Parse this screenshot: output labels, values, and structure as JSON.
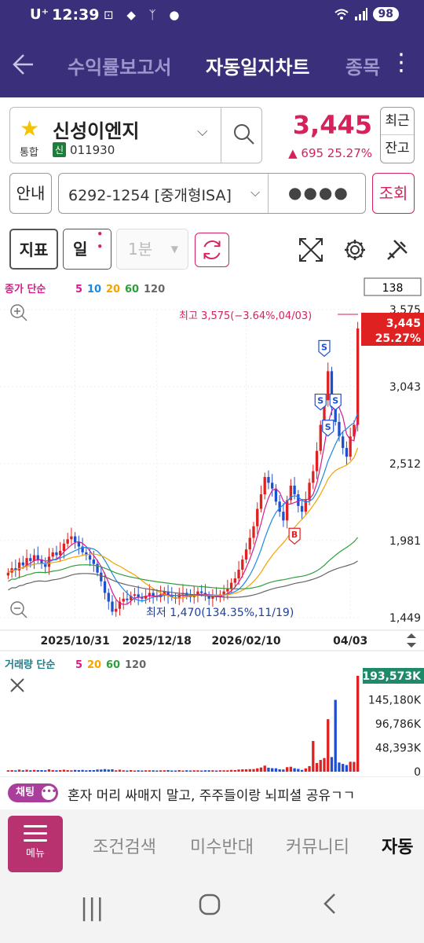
{
  "status": {
    "carrier": "U⁺",
    "time": "12:39",
    "icons": "⊡ ◆ ᛉ ●",
    "battery": "98"
  },
  "nav": {
    "tabs": [
      "수익률보고서",
      "자동일지차트",
      "종목"
    ],
    "active_tab": "자동일지차트"
  },
  "stock": {
    "name": "신성이엔지",
    "market": "통합",
    "badge": "신",
    "code": "011930",
    "price": "3,445",
    "change": "▲ 695   25.27%",
    "recent": "최근",
    "balance": "잔고"
  },
  "account": {
    "info_label": "안내",
    "number": "6292-1254 [중개형ISA]",
    "password_mask": "●●●●",
    "query_label": "조회"
  },
  "toolbar": {
    "indicator_label": "지표",
    "period_label": "일",
    "interval_label": "1분"
  },
  "chart_data": {
    "type": "candlestick",
    "ma_legend_prefix": "종가 단순",
    "ma_legend": [
      {
        "label": "5",
        "color": "#d81b8a"
      },
      {
        "label": "10",
        "color": "#1e88e5"
      },
      {
        "label": "20",
        "color": "#f5a300"
      },
      {
        "label": "60",
        "color": "#2e9e3a"
      },
      {
        "label": "120",
        "color": "#666666"
      }
    ],
    "count_box": "138",
    "y_ticks": [
      "3,575",
      "3,043",
      "2,512",
      "1,981",
      "1,449"
    ],
    "x_ticks": [
      "2025/10/31",
      "2025/12/18",
      "2026/02/10",
      "04/03"
    ],
    "ylim": [
      1449,
      3575
    ],
    "high_annotation": "최고 3,575(−3.64%,04/03)",
    "low_annotation": "최저 1,470(134.35%,11/19)",
    "current_price_label": "3,445",
    "current_pct_label": "25.27%",
    "signals": [
      "S",
      "S",
      "S",
      "S",
      "B"
    ],
    "closes": [
      1760,
      1790,
      1775,
      1830,
      1810,
      1860,
      1840,
      1880,
      1850,
      1820,
      1800,
      1870,
      1900,
      1880,
      1910,
      1960,
      1990,
      2010,
      1970,
      1940,
      1900,
      1880,
      1850,
      1820,
      1760,
      1700,
      1620,
      1560,
      1490,
      1510,
      1560,
      1580,
      1570,
      1600,
      1610,
      1590,
      1580,
      1600,
      1620,
      1600,
      1590,
      1610,
      1630,
      1600,
      1590,
      1580,
      1610,
      1620,
      1600,
      1590,
      1610,
      1630,
      1620,
      1600,
      1580,
      1600,
      1590,
      1610,
      1630,
      1650,
      1690,
      1720,
      1780,
      1850,
      1920,
      2000,
      2080,
      2200,
      2300,
      2420,
      2380,
      2340,
      2250,
      2180,
      2120,
      2260,
      2360,
      2300,
      2220,
      2180,
      2260,
      2380,
      2460,
      2600,
      2780,
      2950,
      3150,
      2900,
      2800,
      2700,
      2620,
      2560,
      2700,
      2780,
      3445
    ]
  },
  "volume_data": {
    "type": "bar",
    "legend_prefix": "거래량 단순",
    "ma_legend": [
      {
        "label": "5",
        "color": "#d81b8a"
      },
      {
        "label": "20",
        "color": "#f5a300"
      },
      {
        "label": "60",
        "color": "#2e9e3a"
      },
      {
        "label": "120",
        "color": "#666666"
      }
    ],
    "y_ticks": [
      "193,573K",
      "145,180K",
      "96,786K",
      "48,393K",
      "0"
    ],
    "ylim": [
      0,
      193573
    ],
    "current_label": "193,573K"
  },
  "chat": {
    "badge": "채팅",
    "message": "혼자 머리 싸매지 말고, 주주들이랑 뇌피셜 공유ㄱㄱ"
  },
  "bottom_nav": {
    "menu_label": "메뉴",
    "items": [
      "조건검색",
      "미수반대",
      "커뮤니티",
      "자동"
    ]
  }
}
